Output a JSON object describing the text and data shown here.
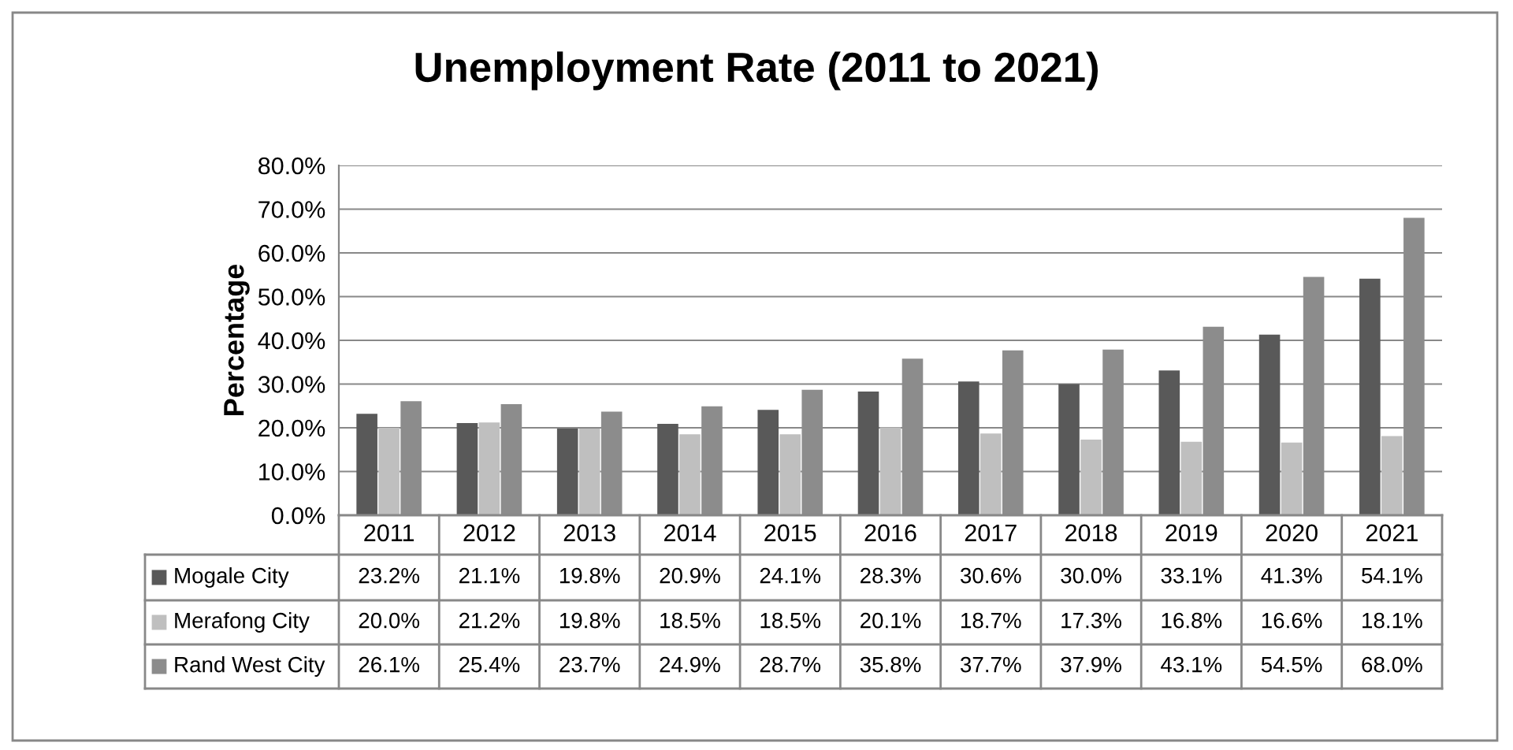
{
  "chart_data": {
    "type": "bar",
    "title": "Unemployment Rate (2011 to 2021)",
    "ylabel": "Percentage",
    "categories": [
      "2011",
      "2012",
      "2013",
      "2014",
      "2015",
      "2016",
      "2017",
      "2018",
      "2019",
      "2020",
      "2021"
    ],
    "series": [
      {
        "name": "Mogale City",
        "color": "#595959",
        "values": [
          23.2,
          21.1,
          19.8,
          20.9,
          24.1,
          28.3,
          30.6,
          30.0,
          33.1,
          41.3,
          54.1
        ],
        "value_labels": [
          "23.2%",
          "21.1%",
          "19.8%",
          "20.9%",
          "24.1%",
          "28.3%",
          "30.6%",
          "30.0%",
          "33.1%",
          "41.3%",
          "54.1%"
        ]
      },
      {
        "name": "Merafong City",
        "color": "#bfbfbf",
        "values": [
          20.0,
          21.2,
          19.8,
          18.5,
          18.5,
          20.1,
          18.7,
          17.3,
          16.8,
          16.6,
          18.1
        ],
        "value_labels": [
          "20.0%",
          "21.2%",
          "19.8%",
          "18.5%",
          "18.5%",
          "20.1%",
          "18.7%",
          "17.3%",
          "16.8%",
          "16.6%",
          "18.1%"
        ]
      },
      {
        "name": "Rand West City",
        "color": "#8c8c8c",
        "values": [
          26.1,
          25.4,
          23.7,
          24.9,
          28.7,
          35.8,
          37.7,
          37.9,
          43.1,
          54.5,
          68.0
        ],
        "value_labels": [
          "26.1%",
          "25.4%",
          "23.7%",
          "24.9%",
          "28.7%",
          "35.8%",
          "37.7%",
          "37.9%",
          "43.1%",
          "54.5%",
          "68.0%"
        ]
      }
    ],
    "ylim": [
      0,
      80
    ],
    "yticks": [
      {
        "value": 0,
        "label": "0.0%"
      },
      {
        "value": 10,
        "label": "10.0%"
      },
      {
        "value": 20,
        "label": "20.0%"
      },
      {
        "value": 30,
        "label": "30.0%"
      },
      {
        "value": 40,
        "label": "40.0%"
      },
      {
        "value": 50,
        "label": "50.0%"
      },
      {
        "value": 60,
        "label": "60.0%"
      },
      {
        "value": 70,
        "label": "70.0%"
      },
      {
        "value": 80,
        "label": "80.0%"
      }
    ],
    "grid": "y",
    "legend": "bottom"
  }
}
